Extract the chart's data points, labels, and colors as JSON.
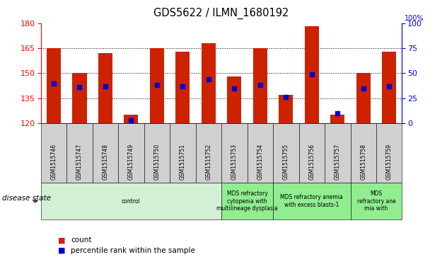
{
  "title": "GDS5622 / ILMN_1680192",
  "samples": [
    "GSM1515746",
    "GSM1515747",
    "GSM1515748",
    "GSM1515749",
    "GSM1515750",
    "GSM1515751",
    "GSM1515752",
    "GSM1515753",
    "GSM1515754",
    "GSM1515755",
    "GSM1515756",
    "GSM1515757",
    "GSM1515758",
    "GSM1515759"
  ],
  "counts": [
    165,
    150,
    162,
    125,
    165,
    163,
    168,
    148,
    165,
    137,
    178,
    125,
    150,
    163
  ],
  "percentile_ranks": [
    40,
    36,
    37,
    3,
    38,
    37,
    44,
    35,
    38,
    26,
    49,
    10,
    35,
    37
  ],
  "ymin": 120,
  "ymax": 180,
  "yticks_left": [
    120,
    135,
    150,
    165,
    180
  ],
  "yticks_right": [
    0,
    25,
    50,
    75,
    100
  ],
  "bar_color": "#cc2200",
  "marker_color": "#0000cc",
  "disease_groups": [
    {
      "label": "control",
      "start": 0,
      "end": 7,
      "color": "#d4f0d4"
    },
    {
      "label": "MDS refractory\ncytopenia with\nmultilineage dysplasia",
      "start": 7,
      "end": 9,
      "color": "#90ee90"
    },
    {
      "label": "MDS refractory anemia\nwith excess blasts-1",
      "start": 9,
      "end": 12,
      "color": "#90ee90"
    },
    {
      "label": "MDS\nrefractory ane\nmia with",
      "start": 12,
      "end": 14,
      "color": "#90ee90"
    }
  ],
  "legend_count_label": "count",
  "legend_pct_label": "percentile rank within the sample",
  "disease_state_label": "disease state"
}
